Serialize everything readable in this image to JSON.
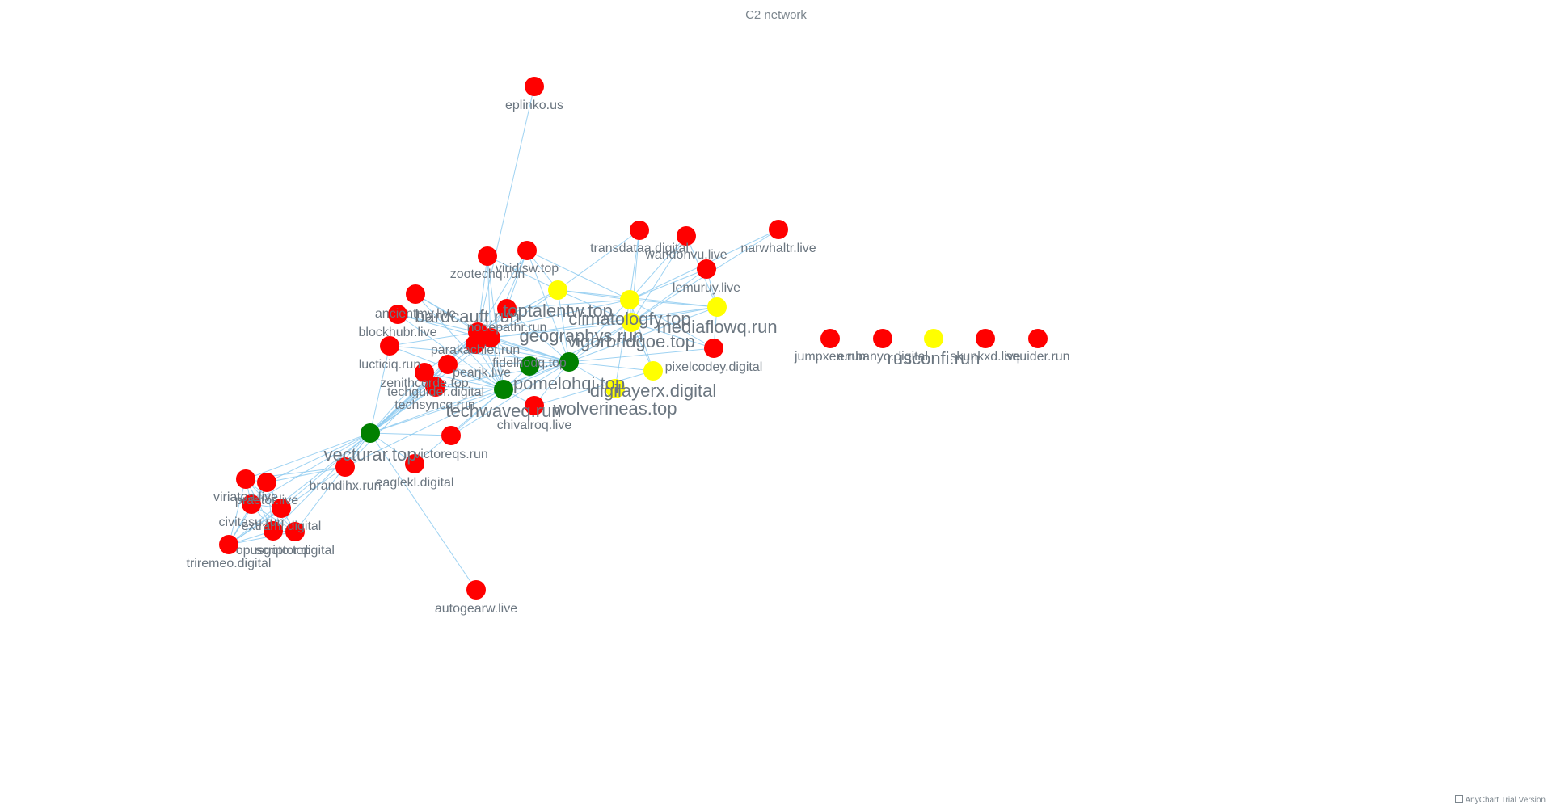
{
  "title": "C2 network",
  "credits": "AnyChart Trial Version",
  "colors": {
    "red": "#ff0000",
    "yellow": "#ffff00",
    "green": "#008000",
    "edge": "#8ecbf0",
    "label": "#6b7680"
  },
  "chart_data": {
    "type": "network",
    "title": "C2 network",
    "nodes": [
      {
        "id": "eplinko.us",
        "group": "red"
      },
      {
        "id": "viridisw.top",
        "group": "red"
      },
      {
        "id": "zootechq.run",
        "group": "red"
      },
      {
        "id": "transdataa.digital",
        "group": "red"
      },
      {
        "id": "wandonvu.live",
        "group": "red"
      },
      {
        "id": "narwhaltr.live",
        "group": "red"
      },
      {
        "id": "lemuruy.live",
        "group": "red"
      },
      {
        "id": "ancientmy.live",
        "group": "red"
      },
      {
        "id": "blockhubr.live",
        "group": "red"
      },
      {
        "id": "nodepathr.run",
        "group": "red"
      },
      {
        "id": "bardcauft.run",
        "group": "red"
      },
      {
        "id": "geographys.run",
        "group": "red"
      },
      {
        "id": "parakachiet.run",
        "group": "red"
      },
      {
        "id": "lucticiq.run",
        "group": "red"
      },
      {
        "id": "pearjk.live",
        "group": "red"
      },
      {
        "id": "zenithcorde.top",
        "group": "red"
      },
      {
        "id": "techguider.digital",
        "group": "red"
      },
      {
        "id": "techsyncq.run",
        "group": "red"
      },
      {
        "id": "chivalroq.live",
        "group": "red"
      },
      {
        "id": "pixelcodey.digital",
        "group": "red"
      },
      {
        "id": "victoreqs.run",
        "group": "red"
      },
      {
        "id": "brandihx.run",
        "group": "red"
      },
      {
        "id": "eaglekl.digital",
        "group": "red"
      },
      {
        "id": "autogearw.live",
        "group": "red"
      },
      {
        "id": "viriatoa.live",
        "group": "red"
      },
      {
        "id": "praetor.live",
        "group": "red"
      },
      {
        "id": "civitasu.run",
        "group": "red"
      },
      {
        "id": "extrami.digital",
        "group": "red"
      },
      {
        "id": "opusgoto.top",
        "group": "red"
      },
      {
        "id": "scriptor.digital",
        "group": "red"
      },
      {
        "id": "triremeo.digital",
        "group": "red"
      },
      {
        "id": "jumpxen.run",
        "group": "red"
      },
      {
        "id": "embanyo.digital",
        "group": "red"
      },
      {
        "id": "skunkxd.live",
        "group": "red"
      },
      {
        "id": "squider.run",
        "group": "red"
      },
      {
        "id": "toptalentw.top",
        "group": "yellow"
      },
      {
        "id": "climatologfy.top",
        "group": "yellow"
      },
      {
        "id": "mediaflowq.run",
        "group": "yellow"
      },
      {
        "id": "vigorbridgoe.top",
        "group": "yellow"
      },
      {
        "id": "wolverineas.top",
        "group": "yellow"
      },
      {
        "id": "digilayerx.digital",
        "group": "yellow"
      },
      {
        "id": "rusconfi.run",
        "group": "yellow"
      },
      {
        "id": "vecturar.top",
        "group": "green"
      },
      {
        "id": "techwaveq.run",
        "group": "green"
      },
      {
        "id": "pomelohqi.top",
        "group": "green"
      },
      {
        "id": "fidelhodq.top",
        "group": "green"
      }
    ],
    "edges": [
      [
        "eplinko.us",
        "bardcauft.run"
      ],
      [
        "autogearw.live",
        "vecturar.top"
      ],
      [
        "narwhaltr.live",
        "climatologfy.top"
      ],
      [
        "transdataa.digital",
        "climatologfy.top"
      ],
      [
        "wandonvu.live",
        "climatologfy.top"
      ],
      [
        "lemuruy.live",
        "climatologfy.top"
      ],
      [
        "toptalentw.top",
        "bardcauft.run"
      ],
      [
        "climatologfy.top",
        "mediaflowq.run"
      ],
      [
        "vigorbridgoe.top",
        "geographys.run"
      ],
      [
        "vecturar.top",
        "brandihx.run"
      ],
      [
        "vecturar.top",
        "viriatoa.live"
      ],
      [
        "vecturar.top",
        "praetor.live"
      ],
      [
        "vecturar.top",
        "triremeo.digital"
      ],
      [
        "viriatoa.live",
        "triremeo.digital"
      ],
      [
        "praetor.live",
        "scriptor.digital"
      ]
    ],
    "labels_enlarged": [
      "bardcauft.run",
      "geographys.run",
      "toptalentw.top",
      "climatologfy.top",
      "mediaflowq.run",
      "vigorbridgoe.top",
      "pomelohqi.top",
      "digilayerx.digital",
      "techwaveq.run",
      "wolverineas.top",
      "vecturar.top",
      "rusconfi.run"
    ]
  }
}
